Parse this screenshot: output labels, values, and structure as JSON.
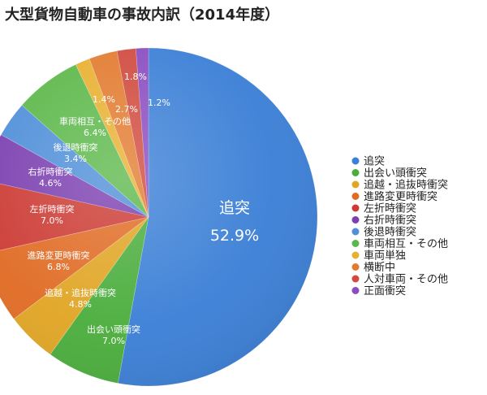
{
  "chart_data": {
    "type": "pie",
    "title": "大型貨物自動車の事故内訳（2014年度）",
    "categories": [
      "追突",
      "出会い頭衝突",
      "追越・追抜時衝突",
      "進路変更時衝突",
      "左折時衝突",
      "右折時衝突",
      "後退時衝突",
      "車両相互・その他",
      "車両単独",
      "横断中",
      "人対車両・その他",
      "正面衝突"
    ],
    "values": [
      52.9,
      7.0,
      4.8,
      6.8,
      7.0,
      4.6,
      3.4,
      6.4,
      1.4,
      2.7,
      1.8,
      1.2
    ],
    "value_labels": [
      "52.9%",
      "7.0%",
      "4.8%",
      "6.8%",
      "7.0%",
      "4.6%",
      "3.4%",
      "6.4%",
      "1.4%",
      "2.7%",
      "1.8%",
      "1.2%"
    ],
    "colors": [
      "#3b7fd6",
      "#4aad3c",
      "#e0a524",
      "#e06b24",
      "#cc3a33",
      "#7b3fb0",
      "#4f8fd9",
      "#5cb84a",
      "#e8b030",
      "#e27b30",
      "#d04a3e",
      "#8a4cc0"
    ],
    "slice_label_visible": [
      true,
      true,
      true,
      true,
      true,
      true,
      true,
      true,
      false,
      false,
      false,
      false
    ],
    "legend_placement": "right",
    "start_angle_note": "12 o'clock, clockwise"
  }
}
